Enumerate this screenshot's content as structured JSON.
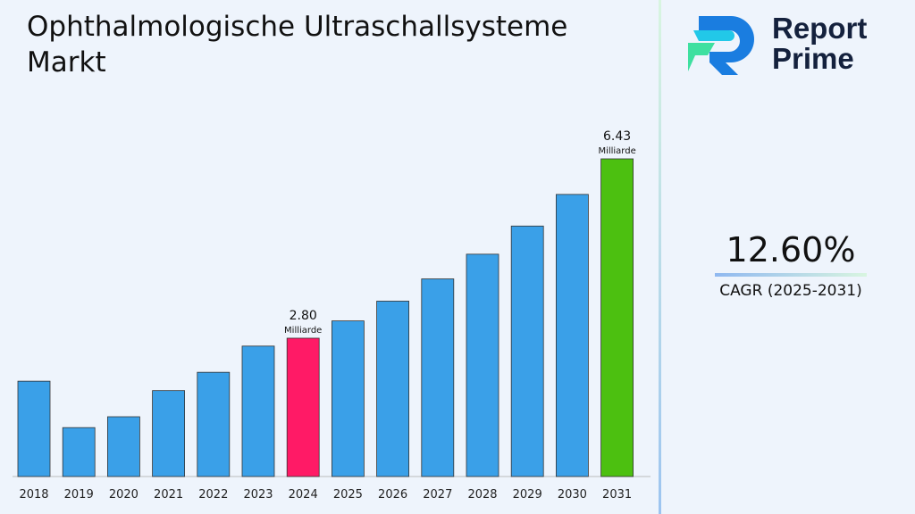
{
  "title": "Ophthalmologische Ultraschallsysteme Markt",
  "logo": {
    "line1": "Report",
    "line2": "Prime"
  },
  "cagr": {
    "value": "12.60%",
    "label": "CAGR (2025-2031)"
  },
  "colors": {
    "default": "#3aa0e8",
    "highlight_2024": "#ff1a66",
    "highlight_2031": "#4cc010"
  },
  "chart_data": {
    "type": "bar",
    "categories": [
      "2018",
      "2019",
      "2020",
      "2021",
      "2022",
      "2023",
      "2024",
      "2025",
      "2026",
      "2027",
      "2028",
      "2029",
      "2030",
      "2031"
    ],
    "values": [
      1.93,
      0.99,
      1.21,
      1.74,
      2.11,
      2.64,
      2.8,
      3.15,
      3.55,
      4.0,
      4.5,
      5.07,
      5.71,
      6.43
    ],
    "data_labels": [
      {
        "category": "2024",
        "value": "2.80",
        "unit": "Milliarde"
      },
      {
        "category": "2031",
        "value": "6.43",
        "unit": "Milliarde"
      }
    ],
    "title": "Ophthalmologische Ultraschallsysteme Markt",
    "xlabel": "",
    "ylabel": "",
    "grid": false,
    "legend": "none"
  }
}
